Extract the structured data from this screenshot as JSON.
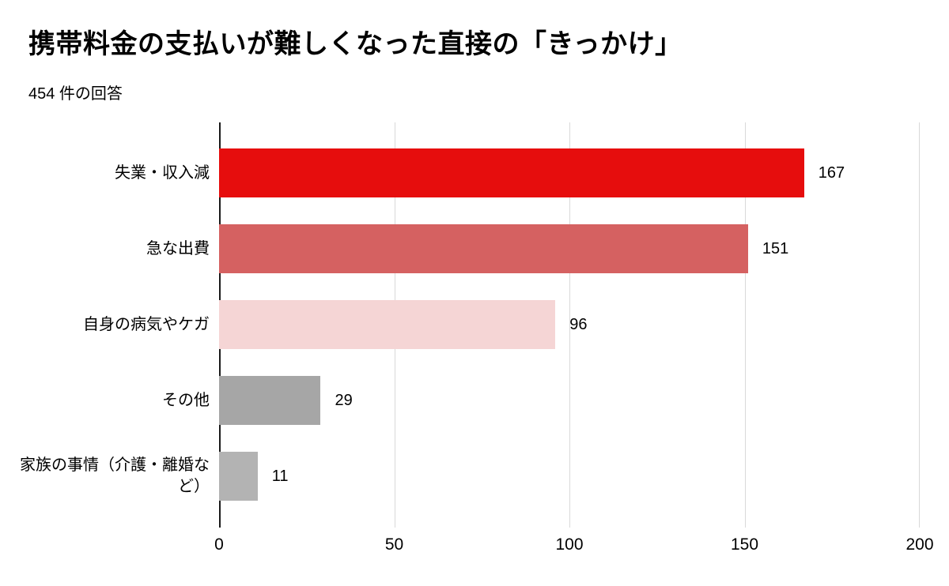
{
  "page": {
    "title": "携帯料金の支払いが難しくなった直接の「きっかけ」",
    "subtitle": "454 件の回答"
  },
  "chart_data": {
    "type": "bar",
    "orientation": "horizontal",
    "title": "携帯料金の支払いが難しくなった直接の「きっかけ」",
    "subtitle": "454 件の回答",
    "categories": [
      "失業・収入減",
      "急な出費",
      "自身の病気やケガ",
      "その他",
      "家族の事情（介護・離婚など）"
    ],
    "values": [
      167,
      151,
      96,
      29,
      11
    ],
    "value_labels": [
      "167",
      "151",
      "96",
      "29",
      "11"
    ],
    "colors": [
      "#e60d0d",
      "#d56161",
      "#f5d5d5",
      "#a6a6a6",
      "#b3b3b3"
    ],
    "xlim": [
      0,
      200
    ],
    "xticks": [
      "0",
      "50",
      "100",
      "150",
      "200"
    ],
    "grid": "vertical",
    "legend": "none",
    "axis_color": "#1a1a1a",
    "gridline_color": "#d9d9d9"
  }
}
